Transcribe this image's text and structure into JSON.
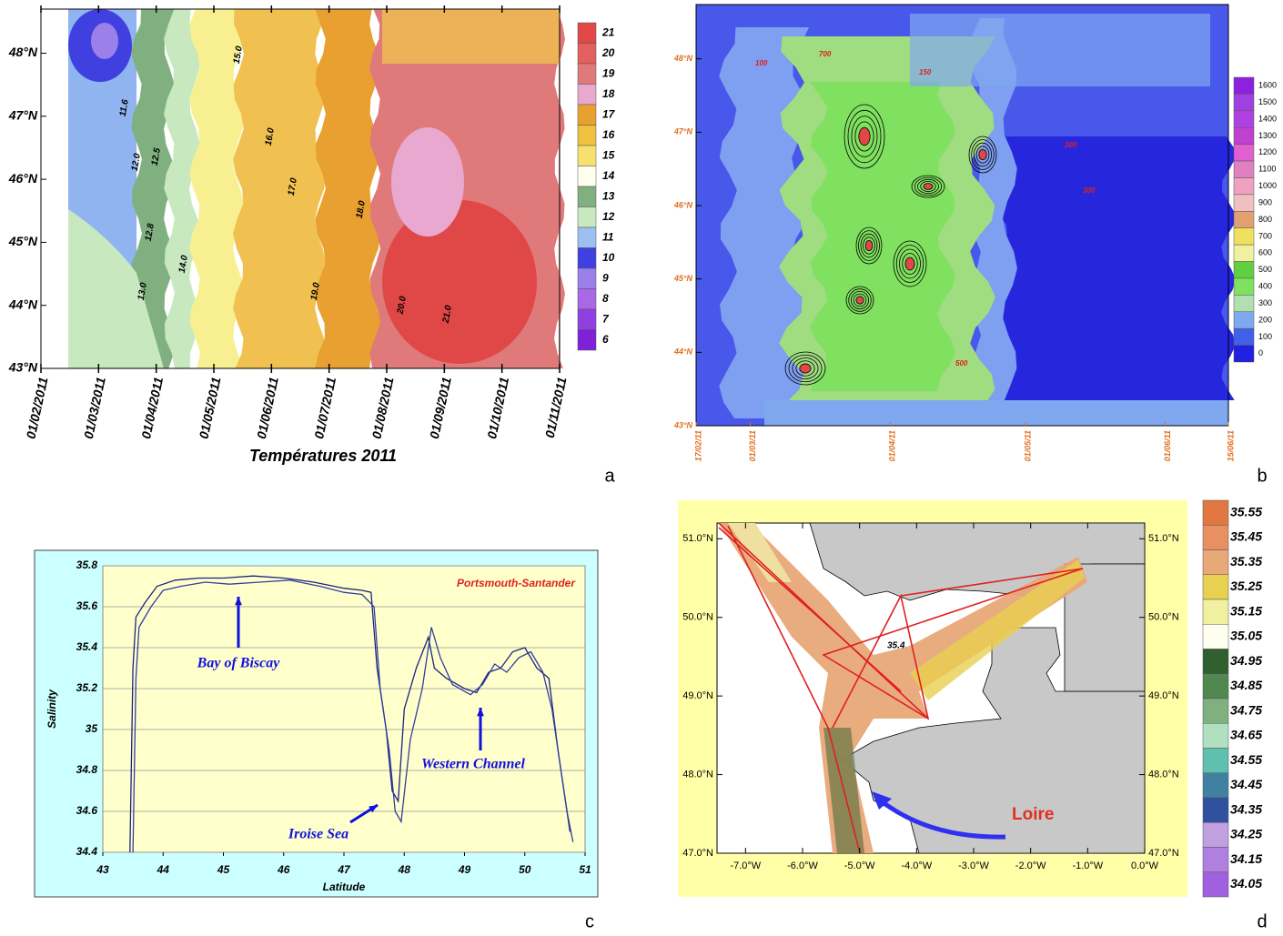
{
  "chart_data": [
    {
      "type": "contour",
      "title": "Températures 2011",
      "categories": [
        "01/02/2011",
        "01/03/2011",
        "01/04/2011",
        "01/05/2011",
        "01/06/2011",
        "01/07/2011",
        "01/08/2011",
        "01/09/2011",
        "01/10/2011",
        "01/11/2011"
      ],
      "ylim": [
        43,
        48.7
      ],
      "yticks": [
        {
          "value": 43,
          "label": "43°N"
        },
        {
          "value": 44,
          "label": "44°N"
        },
        {
          "value": 45,
          "label": "45°N"
        },
        {
          "value": 46,
          "label": "46°N"
        },
        {
          "value": 47,
          "label": "47°N"
        },
        {
          "value": 48,
          "label": "48°N"
        }
      ],
      "colorbar": {
        "levels": [
          21,
          20,
          19,
          18,
          17,
          16,
          15,
          14,
          13,
          12,
          11,
          10,
          9,
          8,
          7,
          6
        ],
        "colors": [
          "#e04848",
          "#e46060",
          "#e07a7a",
          "#e8a8d0",
          "#e8a030",
          "#f0c040",
          "#f8e070",
          "#fffff0",
          "#80b080",
          "#c8e8c0",
          "#9cc0f0",
          "#4040e0",
          "#9a80e8",
          "#a868e8",
          "#9040e0",
          "#8020d8"
        ]
      },
      "annotations": [
        "11.6",
        "12.0",
        "12.5",
        "12.8",
        "13.0",
        "14.0",
        "15.0",
        "16.0",
        "17.0",
        "18.0",
        "19.0",
        "20.0",
        "21.0"
      ],
      "panel_label": "a"
    },
    {
      "type": "contour",
      "categories": [
        "17/02/11",
        "01/03/11",
        "01/04/11",
        "01/05/11",
        "01/06/11",
        "15/06/11"
      ],
      "ylim": [
        43,
        48.74
      ],
      "yticks": [
        {
          "value": 43,
          "label": "43°N"
        },
        {
          "value": 44,
          "label": "44°N"
        },
        {
          "value": 45,
          "label": "45°N"
        },
        {
          "value": 46,
          "label": "46°N"
        },
        {
          "value": 47,
          "label": "47°N"
        },
        {
          "value": 48,
          "label": "48°N"
        }
      ],
      "colorbar": {
        "levels": [
          1600,
          1500,
          1400,
          1300,
          1200,
          1100,
          1000,
          900,
          800,
          700,
          600,
          500,
          400,
          300,
          200,
          100,
          0
        ],
        "colors": [
          "#9020e0",
          "#a040e0",
          "#b040e0",
          "#c040d0",
          "#e060d0",
          "#e080c0",
          "#f0a0c0",
          "#f0c0c0",
          "#e0a070",
          "#f0e060",
          "#f0f0a0",
          "#60d040",
          "#80e060",
          "#b0e0b0",
          "#80a8f0",
          "#4060e8",
          "#2020e0"
        ]
      },
      "annotations": [
        "100",
        "150",
        "200",
        "300",
        "500",
        "700"
      ],
      "panel_label": "b"
    },
    {
      "type": "line",
      "title": "Portsmouth-Santander",
      "xlabel": "Latitude",
      "ylabel": "Salinity",
      "xlim": [
        43,
        51
      ],
      "xticks": [
        43,
        44,
        45,
        46,
        47,
        48,
        49,
        50,
        51
      ],
      "ylim": [
        34.4,
        35.8
      ],
      "yticks": [
        34.4,
        34.6,
        34.8,
        35,
        35.2,
        35.4,
        35.6,
        35.8
      ],
      "grid": true,
      "series": [
        {
          "color": "#1a237e",
          "x": [
            43.45,
            43.5,
            43.55,
            43.7,
            43.9,
            44.2,
            44.6,
            45,
            45.5,
            46,
            46.5,
            47,
            47.3,
            47.45,
            47.55,
            47.7,
            47.8,
            47.9,
            48,
            48.2,
            48.4,
            48.5,
            48.7,
            49,
            49.2,
            49.4,
            49.6,
            49.8,
            50,
            50.2,
            50.4,
            50.55,
            50.65,
            50.75
          ],
          "values": [
            34.4,
            35.3,
            35.55,
            35.62,
            35.7,
            35.73,
            35.74,
            35.74,
            35.75,
            35.74,
            35.72,
            35.69,
            35.68,
            35.67,
            35.3,
            35,
            34.7,
            34.65,
            35.1,
            35.3,
            35.45,
            35.3,
            35.25,
            35.2,
            35.18,
            35.28,
            35.3,
            35.38,
            35.4,
            35.3,
            35.25,
            34.9,
            34.7,
            34.5
          ]
        },
        {
          "color": "#303f9f",
          "x": [
            43.5,
            43.55,
            43.6,
            43.8,
            44,
            44.3,
            44.7,
            45.1,
            45.6,
            46.1,
            46.6,
            47,
            47.3,
            47.5,
            47.6,
            47.75,
            47.85,
            47.95,
            48.1,
            48.3,
            48.45,
            48.6,
            48.8,
            49.1,
            49.3,
            49.5,
            49.7,
            49.9,
            50.1,
            50.3,
            50.45,
            50.6,
            50.7,
            50.8
          ],
          "values": [
            34.4,
            35.25,
            35.5,
            35.6,
            35.68,
            35.7,
            35.72,
            35.71,
            35.72,
            35.73,
            35.7,
            35.67,
            35.66,
            35.6,
            35.2,
            34.9,
            34.6,
            34.55,
            34.95,
            35.2,
            35.5,
            35.35,
            35.22,
            35.17,
            35.22,
            35.32,
            35.28,
            35.35,
            35.38,
            35.28,
            35.1,
            34.8,
            34.6,
            34.45
          ]
        }
      ],
      "annotations": [
        "Bay of Biscay",
        "Western Channel",
        "Iroise Sea"
      ],
      "panel_label": "c"
    },
    {
      "type": "map",
      "xlim": [
        -7.5,
        0
      ],
      "xticks": [
        {
          "value": -7,
          "label": "-7.0°W"
        },
        {
          "value": -6,
          "label": "-6.0°W"
        },
        {
          "value": -5,
          "label": "-5.0°W"
        },
        {
          "value": -4,
          "label": "-4.0°W"
        },
        {
          "value": -3,
          "label": "-3.0°W"
        },
        {
          "value": -2,
          "label": "-2.0°W"
        },
        {
          "value": -1,
          "label": "-1.0°W"
        },
        {
          "value": 0,
          "label": "0.0°W"
        }
      ],
      "ylim": [
        47,
        51.2
      ],
      "yticks": [
        {
          "value": 47,
          "label": "47.0°N"
        },
        {
          "value": 48,
          "label": "48.0°N"
        },
        {
          "value": 49,
          "label": "49.0°N"
        },
        {
          "value": 50,
          "label": "50.0°N"
        },
        {
          "value": 51,
          "label": "51.0°N"
        }
      ],
      "colorbar": {
        "levels": [
          35.55,
          35.45,
          35.35,
          35.25,
          35.15,
          35.05,
          34.95,
          34.85,
          34.75,
          34.65,
          34.55,
          34.45,
          34.35,
          34.25,
          34.15,
          34.05
        ],
        "colors": [
          "#e07840",
          "#e89060",
          "#e8a878",
          "#e8d050",
          "#f0f0a0",
          "#fffff0",
          "#306030",
          "#508850",
          "#80b080",
          "#b0e0c0",
          "#60c0b0",
          "#4080a0",
          "#3050a0",
          "#c0a0e0",
          "#b080e0",
          "#a060e0"
        ]
      },
      "annotations": [
        "Loire",
        "35.4"
      ],
      "panel_label": "d"
    }
  ]
}
